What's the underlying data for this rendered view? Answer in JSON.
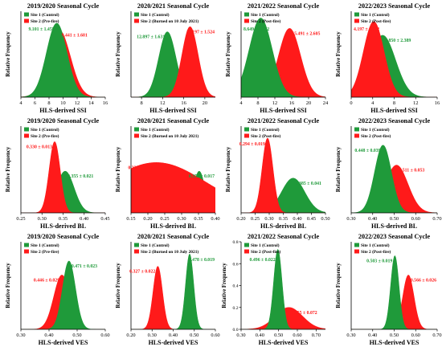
{
  "colors": {
    "site1": "#1f9a3a",
    "site2": "#ff1a1a",
    "axis": "#000000"
  },
  "ylabel": "Relative Frequency",
  "chart_data": [
    {
      "type": "area",
      "title": "2019/2020 Seasonal Cycle",
      "xlabel": "HLS-derived SSI",
      "x_ticks": [
        "4",
        "6",
        "8",
        "10",
        "12",
        "14",
        "16"
      ],
      "xlim": [
        4,
        16
      ],
      "legend": [
        "Site 1 (Control)",
        "Site 2 (Pre-fire)"
      ],
      "series": [
        {
          "name": "Site 1 (Control)",
          "mean": 9.101,
          "sd": 1.455,
          "label": "9.101 ± 1.455",
          "peak": 0.86
        },
        {
          "name": "Site 2 (Pre-fire)",
          "mean": 9.441,
          "sd": 1.601,
          "label": "9.441 ± 1.601",
          "peak": 0.78
        }
      ]
    },
    {
      "type": "area",
      "title": "2020/2021 Seasonal Cycle",
      "xlabel": "HLS-derived SSI",
      "x_ticks": [
        "8",
        "12",
        "16",
        "20"
      ],
      "xlim": [
        6,
        22
      ],
      "legend": [
        "Site 1 (Control)",
        "Site 2 (Burned on 10 July 2021)"
      ],
      "series": [
        {
          "name": "Site 1 (Control)",
          "mean": 12.897,
          "sd": 1.631,
          "label": "12.897 ± 1.631",
          "peak": 0.76
        },
        {
          "name": "Site 2 (Burned on 10 July 2021)",
          "mean": 17.197,
          "sd": 1.524,
          "label": "17.197 ± 1.524",
          "peak": 0.82
        }
      ]
    },
    {
      "type": "area",
      "title": "2021/2022 Seasonal Cycle",
      "xlabel": "HLS-derived SSI",
      "x_ticks": [
        "4",
        "8",
        "12",
        "16",
        "20",
        "24"
      ],
      "xlim": [
        4,
        24
      ],
      "legend": [
        "Site 1 (Control)",
        "Site 2 (Post-fire)"
      ],
      "series": [
        {
          "name": "Site 1 (Control)",
          "mean": 8.649,
          "sd": 2.722,
          "label": "8.649 ± 2.722",
          "peak": 0.92
        },
        {
          "name": "Site 2 (Post-fire)",
          "mean": 15.491,
          "sd": 2.605,
          "label": "15.491 ± 2.605",
          "peak": 0.8
        }
      ]
    },
    {
      "type": "area",
      "title": "2022/2023 Seasonal Cycle",
      "xlabel": "HLS-derived SSI",
      "x_ticks": [
        "0",
        "4",
        "8",
        "12",
        "16"
      ],
      "xlim": [
        0,
        16
      ],
      "legend": [
        "Site 1 (Control)",
        "Site 2 (Post-fire)"
      ],
      "series": [
        {
          "name": "Site 1 (Control)",
          "mean": 5.85,
          "sd": 2.389,
          "label": "5.850 ± 2.389",
          "peak": 0.72
        },
        {
          "name": "Site 2 (Post-fire)",
          "mean": 4.197,
          "sd": 1.912,
          "label": "4.197 ± 1.912",
          "peak": 0.88
        }
      ]
    },
    {
      "type": "area",
      "title": "2019/2020 Seasonal Cycle",
      "xlabel": "HLS-derived BL",
      "x_ticks": [
        "0.25",
        "0.30",
        "0.35",
        "0.40",
        "0.45"
      ],
      "xlim": [
        0.25,
        0.45
      ],
      "legend": [
        "Site 1 (Control)",
        "Site 2 (Pre-fire)"
      ],
      "series": [
        {
          "name": "Site 1 (Control)",
          "mean": 0.355,
          "sd": 0.021,
          "label": "0.355 ± 0.021",
          "peak": 0.48
        },
        {
          "name": "Site 2 (Pre-fire)",
          "mean": 0.33,
          "sd": 0.013,
          "label": "0.330 ± 0.013",
          "peak": 0.82
        }
      ]
    },
    {
      "type": "area",
      "title": "2020/2021 Seasonal Cycle",
      "xlabel": "HLS-derived BL",
      "x_ticks": [
        "0.15",
        "0.20",
        "0.25",
        "0.30",
        "0.35",
        "0.40"
      ],
      "xlim": [
        0.15,
        0.4
      ],
      "legend": [
        "Site 1 (Control)",
        "Site 2 (Burned on 10 July 2021)"
      ],
      "series": [
        {
          "name": "Site 1 (Control)",
          "mean": 0.352,
          "sd": 0.017,
          "label": "0.352 ± 0.017",
          "peak": 0.48
        },
        {
          "name": "Site 2 (Burned on 10 July 2021)",
          "mean": 0.225,
          "sd": 0.148,
          "label": "0.225 ± 0.148",
          "peak": 0.58
        }
      ]
    },
    {
      "type": "area",
      "title": "2021/2022 Seasonal Cycle",
      "xlabel": "HLS-derived BL",
      "x_ticks": [
        "0.20",
        "0.25",
        "0.30",
        "0.35",
        "0.40",
        "0.45",
        "0.50"
      ],
      "xlim": [
        0.2,
        0.5
      ],
      "legend": [
        "Site 1 (Control)",
        "Site 2 (Post-fire)"
      ],
      "series": [
        {
          "name": "Site 1 (Control)",
          "mean": 0.385,
          "sd": 0.041,
          "label": "0.385 ± 0.041",
          "peak": 0.4
        },
        {
          "name": "Site 2 (Post-fire)",
          "mean": 0.294,
          "sd": 0.019,
          "label": "0.294 ± 0.019",
          "peak": 0.86
        }
      ]
    },
    {
      "type": "area",
      "title": "2022/2023 Seasonal Cycle",
      "xlabel": "HLS-derived BL",
      "x_ticks": [
        "0.30",
        "0.40",
        "0.50",
        "0.60",
        "0.70"
      ],
      "xlim": [
        0.3,
        0.7
      ],
      "legend": [
        "Site 1 (Control)",
        "Site 2 (Post-fire)"
      ],
      "series": [
        {
          "name": "Site 1 (Control)",
          "mean": 0.448,
          "sd": 0.039,
          "label": "0.448 ± 0.039",
          "peak": 0.78
        },
        {
          "name": "Site 2 (Post-fire)",
          "mean": 0.511,
          "sd": 0.053,
          "label": "0.511 ± 0.053",
          "peak": 0.55
        }
      ]
    },
    {
      "type": "area",
      "title": "2019/2020 Seasonal Cycle",
      "xlabel": "HLS-derived VES",
      "x_ticks": [
        "0.30",
        "0.40",
        "0.50",
        "0.60"
      ],
      "xlim": [
        0.3,
        0.6
      ],
      "legend": [
        "Site 1 (Control)",
        "Site 2 (Pre-fire)"
      ],
      "series": [
        {
          "name": "Site 1 (Control)",
          "mean": 0.471,
          "sd": 0.023,
          "label": "0.471 ± 0.023",
          "peak": 0.78
        },
        {
          "name": "Site 2 (Pre-fire)",
          "mean": 0.446,
          "sd": 0.029,
          "label": "0.446 ± 0.029",
          "peak": 0.62
        }
      ]
    },
    {
      "type": "area",
      "title": "2020/2021 Seasonal Cycle",
      "xlabel": "HLS-derived VES",
      "x_ticks": [
        "0.20",
        "0.30",
        "0.40",
        "0.50",
        "0.60"
      ],
      "xlim": [
        0.2,
        0.6
      ],
      "legend": [
        "Site 1 (Control)",
        "Site 2 (Burned on 10 July 2021)"
      ],
      "series": [
        {
          "name": "Site 1 (Control)",
          "mean": 0.478,
          "sd": 0.019,
          "label": "0.478 ± 0.019",
          "peak": 0.86
        },
        {
          "name": "Site 2 (Burned on 10 July 2021)",
          "mean": 0.327,
          "sd": 0.022,
          "label": "0.327 ± 0.022",
          "peak": 0.72
        }
      ]
    },
    {
      "type": "area",
      "title": "2021/2022 Seasonal Cycle",
      "xlabel": "HLS-derived VES",
      "x_ticks": [
        "0.30",
        "0.40",
        "0.50",
        "0.60",
        "0.70"
      ],
      "xlim": [
        0.3,
        0.75
      ],
      "y_ticks": [
        "0.0",
        "0.2",
        "0.4",
        "0.6",
        "0.8"
      ],
      "ylim": [
        0,
        0.8
      ],
      "legend": [
        "Site 1 (Control)",
        "Site 2 (Post-fire)"
      ],
      "series": [
        {
          "name": "Site 1 (Control)",
          "mean": 0.496,
          "sd": 0.022,
          "label": "0.496 ± 0.022",
          "peak": 0.73
        },
        {
          "name": "Site 2 (Post-fire)",
          "mean": 0.555,
          "sd": 0.072,
          "label": "0.555 ± 0.072",
          "peak": 0.2
        }
      ]
    },
    {
      "type": "area",
      "title": "2022/2023 Seasonal Cycle",
      "xlabel": "HLS-derived VES",
      "x_ticks": [
        "0.30",
        "0.40",
        "0.50",
        "0.60",
        "0.70"
      ],
      "xlim": [
        0.3,
        0.7
      ],
      "legend": [
        "Site 1 (Control)",
        "Site 2 (Post-fire)"
      ],
      "series": [
        {
          "name": "Site 1 (Control)",
          "mean": 0.503,
          "sd": 0.019,
          "label": "0.503 ± 0.019",
          "peak": 0.84
        },
        {
          "name": "Site 2 (Post-fire)",
          "mean": 0.566,
          "sd": 0.026,
          "label": "0.566 ± 0.026",
          "peak": 0.62
        }
      ]
    }
  ]
}
